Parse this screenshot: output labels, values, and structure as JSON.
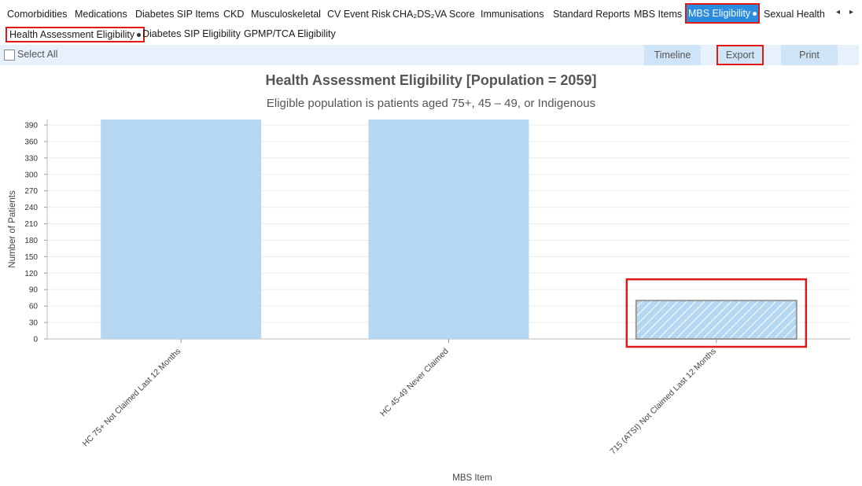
{
  "tabs": [
    {
      "label": "Comorbidities",
      "name": "tab-comorbidities"
    },
    {
      "label": "Medications",
      "name": "tab-medications"
    },
    {
      "label": "Diabetes SIP Items",
      "name": "tab-diabetes-sip-items"
    },
    {
      "label": "CKD",
      "name": "tab-ckd"
    },
    {
      "label": "Musculoskeletal",
      "name": "tab-musculoskeletal"
    },
    {
      "label": "CV Event Risk",
      "name": "tab-cv-event-risk"
    },
    {
      "label": "CHA₂DS₂VA Score",
      "name": "tab-cha2ds2va-score"
    },
    {
      "label": "Immunisations",
      "name": "tab-immunisations"
    },
    {
      "label": "Standard Reports",
      "name": "tab-standard-reports"
    },
    {
      "label": "MBS Items",
      "name": "tab-mbs-items"
    },
    {
      "label": "MBS Eligibility",
      "name": "tab-mbs-eligibility"
    },
    {
      "label": "Sexual Health",
      "name": "tab-sexual-health"
    }
  ],
  "subtabs": [
    {
      "label": "Health Assessment Eligibility"
    },
    {
      "label": "Diabetes SIP Eligibility"
    },
    {
      "label": "GPMP/TCA Eligibility"
    }
  ],
  "toolbar": {
    "select_all": "Select All",
    "timeline": "Timeline",
    "export": "Export",
    "print": "Print"
  },
  "nav": {
    "left_arrow": "◂",
    "right_arrow": "▸"
  },
  "chart": {
    "title": "Health Assessment Eligibility [Population = 2059]",
    "subtitle": "Eligible population is patients aged 75+, 45 – 49, or Indigenous"
  },
  "colors": {
    "accent": "#2a8be0",
    "highlight_red": "#e01818",
    "bar_fill": "#b5d7f1",
    "toolbar_bg": "#e6f1fb"
  },
  "chart_data": {
    "type": "bar",
    "title": "Health Assessment Eligibility [Population = 2059]",
    "subtitle": "Eligible population is patients aged 75+, 45 – 49, or Indigenous",
    "xlabel": "MBS Item",
    "ylabel": "Number of Patients",
    "categories": [
      "HC 75+ Not Claimed Last 12 Months",
      "HC 45-49 Never Claimed",
      "715 (ATSI) Not Claimed Last 12 Months"
    ],
    "values": [
      400,
      400,
      70
    ],
    "selected_index": 2,
    "ylim": [
      0,
      400
    ],
    "yticks": [
      0,
      30,
      60,
      90,
      120,
      150,
      180,
      210,
      240,
      270,
      300,
      330,
      360,
      390
    ],
    "grid": true
  }
}
